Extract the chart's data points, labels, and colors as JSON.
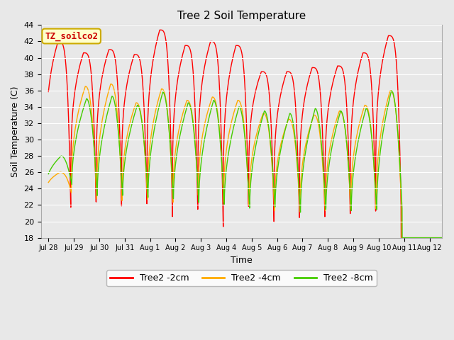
{
  "title": "Tree 2 Soil Temperature",
  "xlabel": "Time",
  "ylabel": "Soil Temperature (C)",
  "ylim": [
    18,
    44
  ],
  "background_color": "#e8e8e8",
  "plot_bg_color": "#e8e8e8",
  "annotation_text": "TZ_soilco2",
  "annotation_bg": "#ffffcc",
  "annotation_border": "#ccaa00",
  "xtick_labels": [
    "Jul 28",
    "Jul 29",
    "Jul 30",
    "Jul 31",
    "Aug 1",
    "Aug 2",
    "Aug 3",
    "Aug 4",
    "Aug 5",
    "Aug 6",
    "Aug 7",
    "Aug 8",
    "Aug 9",
    "Aug 10",
    "Aug 11",
    "Aug 12"
  ],
  "red_color": "#ff0000",
  "orange_color": "#ffaa00",
  "green_color": "#44cc00",
  "red_label": "Tree2 -2cm",
  "orange_label": "Tree2 -4cm",
  "green_label": "Tree2 -8cm",
  "red_peaks": [
    42.0,
    40.6,
    41.0,
    40.4,
    43.4,
    41.5,
    42.0,
    41.5,
    38.3,
    38.3,
    38.8,
    39.0,
    40.6,
    42.7
  ],
  "red_troughs": [
    21.5,
    21.8,
    21.7,
    21.6,
    20.4,
    20.9,
    19.2,
    21.3,
    19.8,
    20.0,
    20.5,
    20.5,
    21.2,
    21.5
  ],
  "orange_peaks": [
    26.0,
    36.5,
    36.8,
    34.5,
    36.2,
    34.8,
    35.2,
    34.8,
    33.2,
    32.5,
    33.0,
    33.5,
    34.2,
    36.0
  ],
  "orange_troughs": [
    23.5,
    22.5,
    22.5,
    22.5,
    22.3,
    23.0,
    22.3,
    21.8,
    21.3,
    21.0,
    21.0,
    21.3,
    21.2,
    21.5
  ],
  "green_peaks": [
    28.0,
    35.0,
    35.3,
    34.2,
    35.8,
    34.5,
    34.8,
    34.0,
    33.5,
    33.2,
    33.8,
    33.5,
    33.8,
    36.0
  ],
  "green_troughs": [
    24.5,
    23.0,
    23.0,
    22.8,
    22.5,
    22.2,
    21.8,
    21.5,
    21.5,
    21.0,
    21.2,
    21.2,
    21.2,
    21.5
  ],
  "peak_phase": 0.35,
  "trough_phase": 0.85,
  "num_cycles": 14
}
